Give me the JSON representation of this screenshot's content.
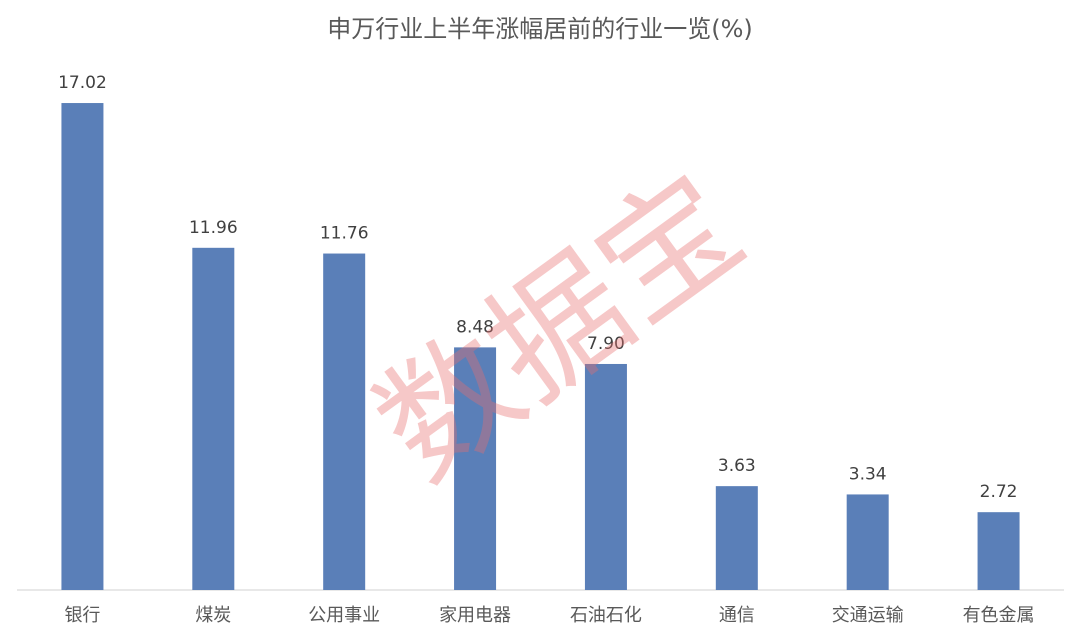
{
  "chart_data": {
    "type": "bar",
    "title": "申万行业上半年涨幅居前的行业一览(%)",
    "categories": [
      "银行",
      "煤炭",
      "公用事业",
      "家用电器",
      "石油石化",
      "通信",
      "交通运输",
      "有色金属"
    ],
    "values": [
      17.02,
      11.96,
      11.76,
      8.48,
      7.9,
      3.63,
      3.34,
      2.72
    ],
    "value_labels": [
      "17.02",
      "11.96",
      "11.76",
      "8.48",
      "7.90",
      "3.63",
      "3.34",
      "2.72"
    ],
    "color": "#5a7fb8",
    "ylim": [
      0,
      18
    ],
    "watermark": "数据宝"
  }
}
